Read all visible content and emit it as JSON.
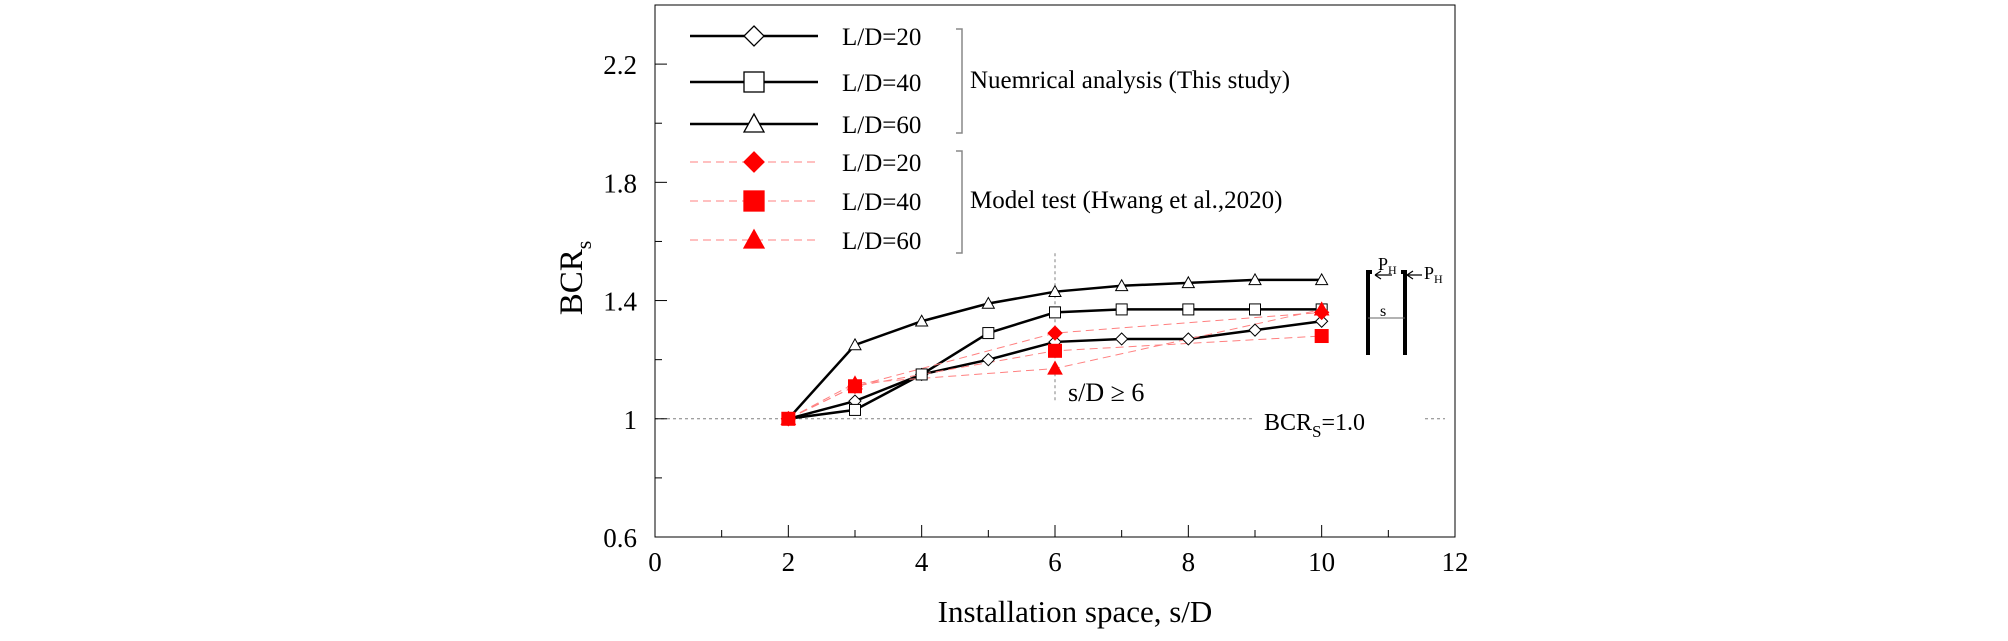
{
  "chart_data": {
    "type": "line",
    "title": "",
    "xlabel": "Installation space, s/D",
    "ylabel_main": "BCR",
    "ylabel_sub": "s",
    "xlim": [
      0,
      12
    ],
    "ylim": [
      0.6,
      2.4
    ],
    "x_ticks": [
      0,
      2,
      4,
      6,
      8,
      10,
      12
    ],
    "y_ticks": [
      0.6,
      1.0,
      1.4,
      1.8,
      2.2
    ],
    "x_tick_labels": [
      "0",
      "2",
      "4",
      "6",
      "8",
      "10",
      "12"
    ],
    "y_tick_labels": [
      "0.6",
      "1",
      "1.4",
      "1.8",
      "2.2"
    ],
    "grid": false,
    "legend_position": "top-left",
    "series": [
      {
        "name": "L/D=20",
        "group": "numerical",
        "marker": "diamond-open",
        "color": "#000000",
        "x": [
          2,
          3,
          4,
          5,
          6,
          7,
          8,
          9,
          10
        ],
        "y": [
          1.0,
          1.06,
          1.15,
          1.2,
          1.26,
          1.27,
          1.27,
          1.3,
          1.33
        ]
      },
      {
        "name": "L/D=40",
        "group": "numerical",
        "marker": "square-open",
        "color": "#000000",
        "x": [
          2,
          3,
          4,
          5,
          6,
          7,
          8,
          9,
          10
        ],
        "y": [
          1.0,
          1.03,
          1.15,
          1.29,
          1.36,
          1.37,
          1.37,
          1.37,
          1.37
        ]
      },
      {
        "name": "L/D=60",
        "group": "numerical",
        "marker": "triangle-open",
        "color": "#000000",
        "x": [
          2,
          3,
          4,
          5,
          6,
          7,
          8,
          9,
          10
        ],
        "y": [
          1.0,
          1.25,
          1.33,
          1.39,
          1.43,
          1.45,
          1.46,
          1.47,
          1.47
        ]
      },
      {
        "name": "L/D=20",
        "group": "model",
        "marker": "diamond-filled",
        "color": "#ff0000",
        "x": [
          2,
          3,
          6,
          10
        ],
        "y": [
          1.0,
          1.11,
          1.29,
          1.36
        ]
      },
      {
        "name": "L/D=40",
        "group": "model",
        "marker": "square-filled",
        "color": "#ff0000",
        "x": [
          2,
          3,
          6,
          10
        ],
        "y": [
          1.0,
          1.11,
          1.23,
          1.28
        ]
      },
      {
        "name": "L/D=60",
        "group": "model",
        "marker": "triangle-filled",
        "color": "#ff0000",
        "x": [
          2,
          3,
          6,
          10
        ],
        "y": [
          1.0,
          1.12,
          1.17,
          1.37
        ]
      }
    ],
    "legend_groups": {
      "numerical": "Nuemrical analysis (This study)",
      "model": "Model test (Hwang et al.,2020)"
    },
    "annotations": {
      "reference_line": {
        "y": 1.0,
        "label_main": "BCR",
        "label_sub": "S",
        "label_tail": "=1.0"
      },
      "vertical_marker": {
        "x": 6,
        "y_range": [
          1.06,
          1.56
        ],
        "label": "s/D ≥ 6"
      },
      "inset": {
        "load_label": "P",
        "load_sub": "H",
        "spacing_label": "s"
      }
    },
    "colors": {
      "numerical": "#000000",
      "model": "#ff0000",
      "model_line": "#ff8080",
      "reference": "#808080"
    }
  }
}
